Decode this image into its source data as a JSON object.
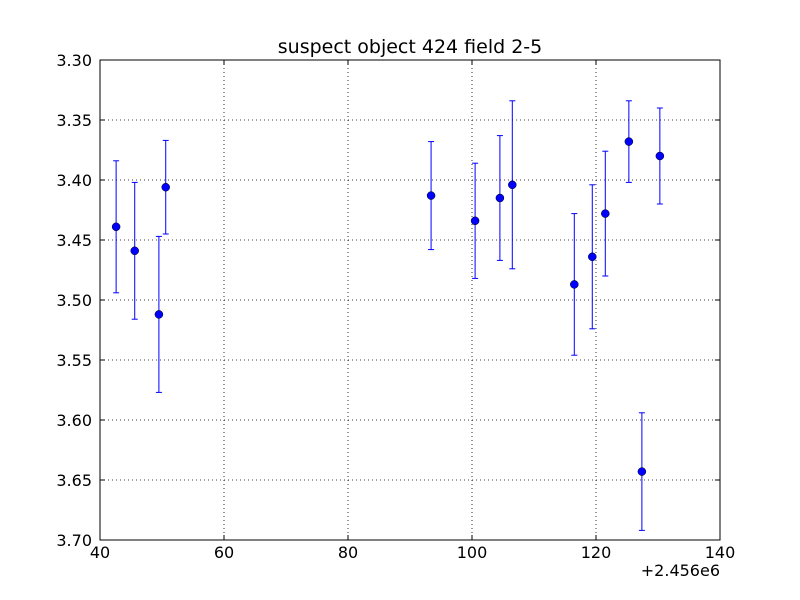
{
  "chart_data": {
    "type": "errorbar",
    "title": "suspect object 424 field 2-5",
    "x": [
      42.6,
      45.6,
      49.5,
      50.6,
      93.4,
      100.5,
      104.5,
      106.5,
      116.5,
      119.4,
      121.5,
      125.3,
      127.4,
      130.3
    ],
    "values": [
      3.439,
      3.459,
      3.512,
      3.406,
      3.413,
      3.434,
      3.415,
      3.404,
      3.487,
      3.464,
      3.428,
      3.368,
      3.643,
      3.38
    ],
    "errors": [
      0.055,
      0.057,
      0.065,
      0.039,
      0.045,
      0.048,
      0.052,
      0.07,
      0.059,
      0.06,
      0.052,
      0.034,
      0.049,
      0.04
    ],
    "color": "#0000ff",
    "xlim": [
      40,
      140
    ],
    "xticks": [
      40,
      60,
      80,
      100,
      120,
      140
    ],
    "x_offset_label": "+2.456e6",
    "ylim": [
      3.7,
      3.3
    ],
    "yticks": [
      {
        "value": 3.3,
        "label": "3.30"
      },
      {
        "value": 3.35,
        "label": "3.35"
      },
      {
        "value": 3.4,
        "label": "3.40"
      },
      {
        "value": 3.45,
        "label": "3.45"
      },
      {
        "value": 3.5,
        "label": "3.50"
      },
      {
        "value": 3.55,
        "label": "3.55"
      },
      {
        "value": 3.6,
        "label": "3.60"
      },
      {
        "value": 3.65,
        "label": "3.65"
      },
      {
        "value": 3.7,
        "label": "3.70"
      }
    ],
    "grid": true
  }
}
